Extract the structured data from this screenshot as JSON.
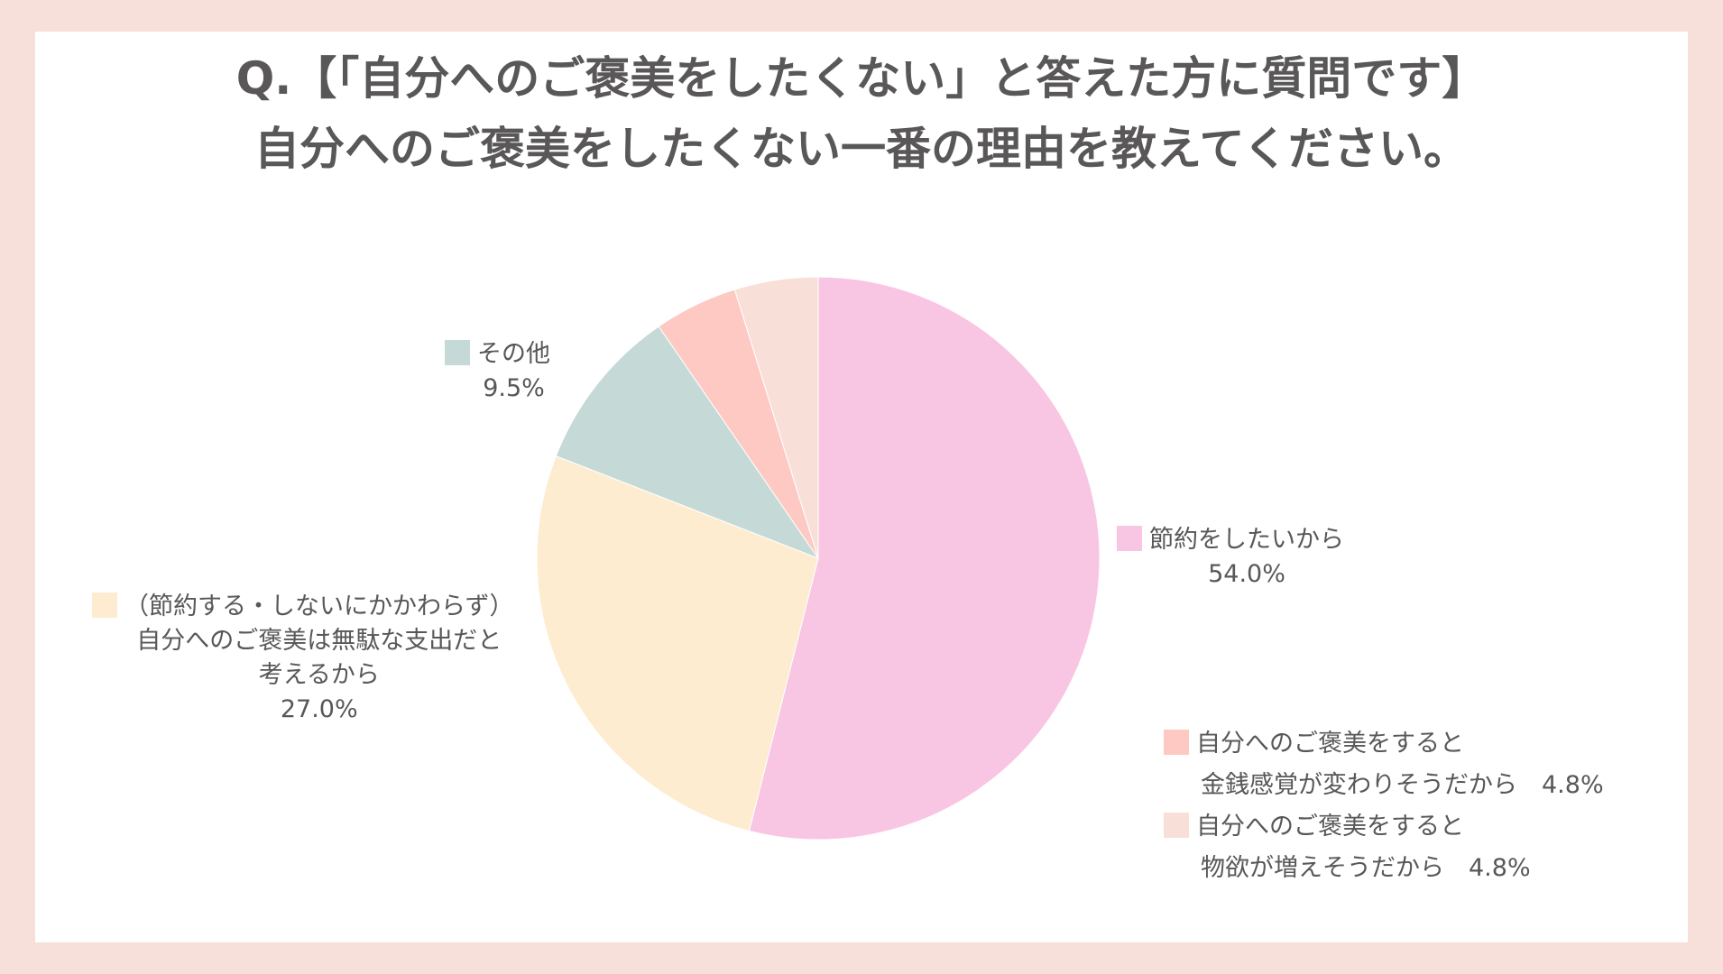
{
  "title": {
    "line1": "Q.【「自分へのご褒美をしたくない」と答えた方に質問です】",
    "line2": "自分へのご褒美をしたくない一番の理由を教えてください。"
  },
  "chart_data": {
    "type": "pie",
    "title": "Q.【「自分へのご褒美をしたくない」と答えた方に質問です】自分へのご褒美をしたくない一番の理由を教えてください。",
    "slices": [
      {
        "label": "節約をしたいから",
        "value": 54.0,
        "value_label": "54.0%",
        "color": "#f8c6e3"
      },
      {
        "label": "（節約する・しないにかかわらず）自分へのご褒美は無駄な支出だと考えるから",
        "value": 27.0,
        "value_label": "27.0%",
        "color": "#fdecd0"
      },
      {
        "label": "その他",
        "value": 9.5,
        "value_label": "9.5%",
        "color": "#c5d9d6"
      },
      {
        "label": "自分へのご褒美をすると金銭感覚が変わりそうだから",
        "value": 4.8,
        "value_label": "4.8%",
        "color": "#fdc9c2"
      },
      {
        "label": "自分へのご褒美をすると物欲が増えそうだから",
        "value": 4.8,
        "value_label": "4.8%",
        "color": "#f8e0d9"
      }
    ]
  },
  "labels": {
    "slice0_line1": "節約をしたいから",
    "slice0_value": "54.0%",
    "slice1_line1": "（節約する・しないにかかわらず）",
    "slice1_line2": "自分へのご褒美は無駄な支出だと",
    "slice1_line3": "考えるから",
    "slice1_value": "27.0%",
    "slice2_line1": "その他",
    "slice2_value": "9.5%",
    "slice3_line1": "自分へのご褒美をすると",
    "slice3_line2": "金銭感覚が変わりそうだから　4.8%",
    "slice4_line1": "自分へのご褒美をすると",
    "slice4_line2": "物欲が増えそうだから　4.8%"
  }
}
